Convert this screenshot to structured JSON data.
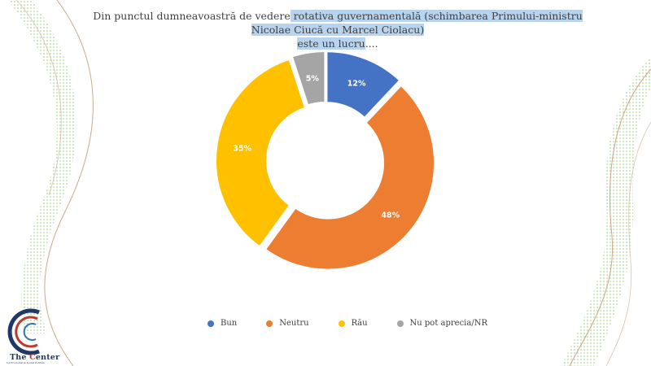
{
  "title": {
    "line1_plain": "Din punctul dumneavoastră de vedere",
    "line1_highlight": " rotativa guvernamentală (schimbarea Primului-ministru Nicolae Ciucă cu Marcel Ciolacu)",
    "line2_highlight": "este un lucru",
    "line2_plain": "...."
  },
  "chart_data": {
    "type": "pie",
    "style": "donut",
    "categories": [
      "Bun",
      "Neutru",
      "Rău",
      "Nu pot aprecia/NR"
    ],
    "values": [
      12,
      48,
      35,
      5
    ],
    "value_labels": [
      "12%",
      "48%",
      "35%",
      "5%"
    ],
    "colors": [
      "#4472c4",
      "#ed7d31",
      "#ffc000",
      "#a5a5a5"
    ],
    "legend_position": "bottom"
  },
  "logo": {
    "name_part1": "The ",
    "name_part2": "C",
    "name_part3": "enter",
    "tagline": "for Economic & Social Policies"
  }
}
